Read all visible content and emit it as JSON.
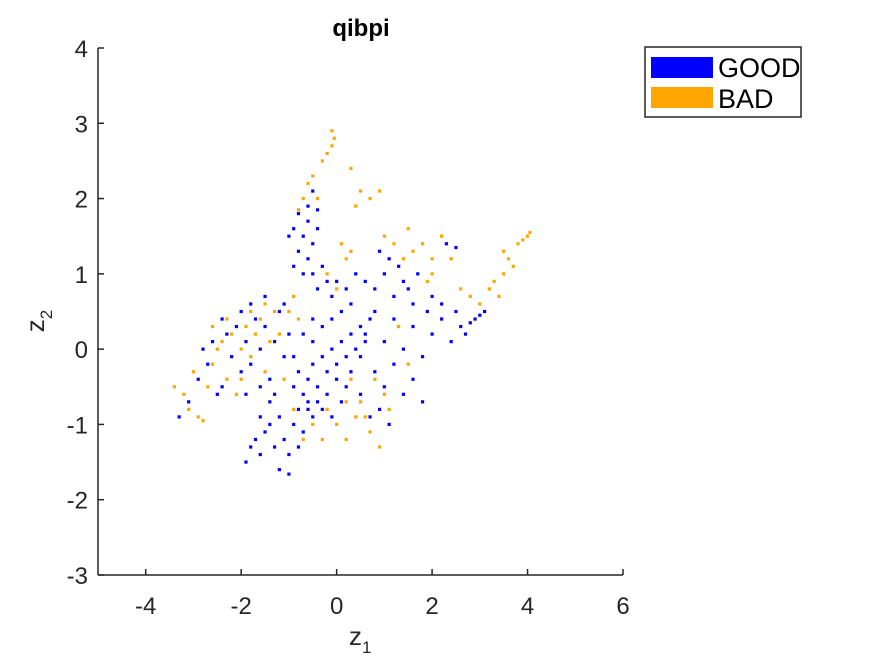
{
  "chart_data": {
    "type": "scatter",
    "title": "qibpi",
    "xlabel": "z",
    "xlabel_subscript": "1",
    "ylabel": "z",
    "ylabel_subscript": "2",
    "xlim": [
      -5,
      6
    ],
    "ylim": [
      -3,
      4
    ],
    "xticks": [
      -4,
      -2,
      0,
      2,
      4,
      6
    ],
    "yticks": [
      -3,
      -2,
      -1,
      0,
      1,
      2,
      3,
      4
    ],
    "grid": false,
    "legend_position": "top-right, outside axes",
    "series": [
      {
        "name": "GOOD",
        "color": "#0000ff",
        "points": [
          [
            -3.3,
            -0.9
          ],
          [
            -3.1,
            -0.7
          ],
          [
            -2.9,
            -0.4
          ],
          [
            -2.7,
            -0.2
          ],
          [
            -2.6,
            0.1
          ],
          [
            -2.4,
            -0.5
          ],
          [
            -2.3,
            0.2
          ],
          [
            -2.2,
            -0.1
          ],
          [
            -2.1,
            0.3
          ],
          [
            -2.0,
            -0.3
          ],
          [
            -1.9,
            0.1
          ],
          [
            -1.8,
            -0.2
          ],
          [
            -1.7,
            0.4
          ],
          [
            -1.6,
            0.0
          ],
          [
            -1.5,
            0.3
          ],
          [
            -1.4,
            -0.4
          ],
          [
            -1.3,
            0.1
          ],
          [
            -1.2,
            0.5
          ],
          [
            -1.1,
            -0.1
          ],
          [
            -1.0,
            0.2
          ],
          [
            -2.5,
            -0.6
          ],
          [
            -2.0,
            0.5
          ],
          [
            -1.8,
            0.6
          ],
          [
            -1.6,
            -0.5
          ],
          [
            -2.8,
            0.0
          ],
          [
            -2.4,
            0.4
          ],
          [
            -1.9,
            -0.6
          ],
          [
            -1.5,
            0.7
          ],
          [
            -1.3,
            -0.6
          ],
          [
            -1.1,
            0.6
          ],
          [
            -1.9,
            -1.5
          ],
          [
            -1.8,
            -1.3
          ],
          [
            -1.7,
            -1.2
          ],
          [
            -1.6,
            -1.4
          ],
          [
            -1.5,
            -1.1
          ],
          [
            -1.4,
            -1.0
          ],
          [
            -1.3,
            -1.3
          ],
          [
            -1.2,
            -0.9
          ],
          [
            -1.1,
            -1.2
          ],
          [
            -1.0,
            -1.4
          ],
          [
            -0.9,
            -1.0
          ],
          [
            -0.8,
            -0.8
          ],
          [
            -0.7,
            -1.1
          ],
          [
            -0.6,
            -0.7
          ],
          [
            -0.5,
            -0.9
          ],
          [
            -1.2,
            -1.6
          ],
          [
            -1.0,
            -1.66
          ],
          [
            -0.8,
            -1.3
          ],
          [
            -1.6,
            -0.9
          ],
          [
            -1.4,
            -0.7
          ],
          [
            -0.9,
            -0.5
          ],
          [
            -0.8,
            -0.3
          ],
          [
            -0.7,
            -0.6
          ],
          [
            -0.6,
            -0.4
          ],
          [
            -0.5,
            -0.2
          ],
          [
            -0.4,
            -0.5
          ],
          [
            -0.3,
            -0.1
          ],
          [
            -0.2,
            -0.3
          ],
          [
            -0.1,
            0.0
          ],
          [
            0.0,
            -0.2
          ],
          [
            0.1,
            0.1
          ],
          [
            0.2,
            -0.1
          ],
          [
            0.3,
            0.2
          ],
          [
            0.4,
            0.0
          ],
          [
            0.5,
            0.3
          ],
          [
            -0.6,
            -0.8
          ],
          [
            -0.4,
            -0.7
          ],
          [
            -0.2,
            -0.6
          ],
          [
            0.0,
            -0.4
          ],
          [
            0.2,
            -0.5
          ],
          [
            -0.5,
            0.1
          ],
          [
            -0.3,
            0.3
          ],
          [
            -0.1,
            0.4
          ],
          [
            0.1,
            0.5
          ],
          [
            0.3,
            0.6
          ],
          [
            -0.9,
            -0.1
          ],
          [
            -0.7,
            0.2
          ],
          [
            -0.5,
            0.4
          ],
          [
            -0.3,
            -0.8
          ],
          [
            -0.1,
            -0.9
          ],
          [
            0.1,
            -0.7
          ],
          [
            0.3,
            -0.3
          ],
          [
            0.5,
            -0.1
          ],
          [
            0.6,
            0.1
          ],
          [
            0.7,
            0.4
          ],
          [
            -0.9,
            1.6
          ],
          [
            -0.8,
            1.8
          ],
          [
            -0.7,
            1.5
          ],
          [
            -0.6,
            1.7
          ],
          [
            -0.5,
            1.4
          ],
          [
            -0.4,
            1.6
          ],
          [
            -0.6,
            1.2
          ],
          [
            -0.5,
            1.0
          ],
          [
            -0.4,
            0.8
          ],
          [
            -0.3,
            1.1
          ],
          [
            -0.2,
            0.9
          ],
          [
            -0.1,
            0.7
          ],
          [
            0.0,
            0.9
          ],
          [
            -0.7,
            1.0
          ],
          [
            -0.8,
            1.3
          ],
          [
            -0.6,
            1.9
          ],
          [
            -0.5,
            2.1
          ],
          [
            -0.4,
            1.85
          ],
          [
            -1.0,
            1.5
          ],
          [
            -0.9,
            1.1
          ],
          [
            0.6,
            0.2
          ],
          [
            0.8,
            0.5
          ],
          [
            1.0,
            0.1
          ],
          [
            1.2,
            0.4
          ],
          [
            1.4,
            0.0
          ],
          [
            1.6,
            0.3
          ],
          [
            1.8,
            -0.1
          ],
          [
            2.0,
            0.2
          ],
          [
            2.2,
            0.4
          ],
          [
            2.4,
            0.1
          ],
          [
            2.6,
            0.3
          ],
          [
            2.8,
            0.35
          ],
          [
            3.0,
            0.45
          ],
          [
            2.5,
            0.5
          ],
          [
            2.7,
            0.2
          ],
          [
            0.8,
            -0.3
          ],
          [
            1.0,
            -0.5
          ],
          [
            1.2,
            -0.2
          ],
          [
            1.4,
            -0.6
          ],
          [
            1.6,
            -0.4
          ],
          [
            1.8,
            -0.7
          ],
          [
            0.9,
            -0.8
          ],
          [
            1.1,
            -1.0
          ],
          [
            0.5,
            -0.6
          ],
          [
            0.7,
            -0.9
          ],
          [
            0.8,
            0.8
          ],
          [
            1.0,
            1.0
          ],
          [
            1.2,
            0.7
          ],
          [
            1.4,
            0.9
          ],
          [
            1.6,
            0.6
          ],
          [
            1.1,
            1.2
          ],
          [
            1.3,
            1.1
          ],
          [
            0.9,
            1.3
          ],
          [
            1.5,
            0.8
          ],
          [
            1.7,
            1.0
          ],
          [
            2.3,
            1.4
          ],
          [
            2.5,
            1.35
          ],
          [
            2.0,
            0.7
          ],
          [
            2.2,
            0.6
          ],
          [
            1.9,
            0.5
          ],
          [
            3.1,
            0.5
          ],
          [
            2.9,
            0.4
          ],
          [
            0.4,
            1.0
          ],
          [
            0.2,
            0.8
          ],
          [
            0.6,
            0.9
          ]
        ]
      },
      {
        "name": "BAD",
        "color": "#ffa500",
        "points": [
          [
            -3.4,
            -0.5
          ],
          [
            -3.2,
            -0.6
          ],
          [
            -3.0,
            -0.3
          ],
          [
            -2.9,
            -0.9
          ],
          [
            -2.8,
            -0.95
          ],
          [
            -2.7,
            -0.5
          ],
          [
            -2.6,
            -0.2
          ],
          [
            -2.5,
            0.0
          ],
          [
            -2.4,
            0.1
          ],
          [
            -2.3,
            -0.4
          ],
          [
            -2.2,
            0.2
          ],
          [
            -2.1,
            -0.6
          ],
          [
            -2.0,
            0.0
          ],
          [
            -1.9,
            0.3
          ],
          [
            -1.8,
            -0.1
          ],
          [
            -1.7,
            0.2
          ],
          [
            -1.6,
            0.4
          ],
          [
            -1.5,
            -0.3
          ],
          [
            -1.4,
            0.1
          ],
          [
            -1.3,
            0.5
          ],
          [
            -2.6,
            0.3
          ],
          [
            -2.3,
            0.4
          ],
          [
            -2.0,
            -0.4
          ],
          [
            -1.8,
            0.5
          ],
          [
            -1.5,
            0.6
          ],
          [
            -1.2,
            0.2
          ],
          [
            -1.0,
            0.5
          ],
          [
            -0.9,
            0.7
          ],
          [
            -0.8,
            0.4
          ],
          [
            -3.1,
            -0.8
          ],
          [
            -0.7,
            2.0
          ],
          [
            -0.6,
            2.2
          ],
          [
            -0.5,
            2.3
          ],
          [
            -0.8,
            1.85
          ],
          [
            -0.4,
            2.0
          ],
          [
            -0.5,
            -1.0
          ],
          [
            -0.7,
            -1.2
          ],
          [
            -0.9,
            -0.8
          ],
          [
            -1.1,
            -0.4
          ],
          [
            -0.3,
            -1.2
          ],
          [
            -0.2,
            1.0
          ],
          [
            0.0,
            0.8
          ],
          [
            0.2,
            1.2
          ],
          [
            0.1,
            1.4
          ],
          [
            0.3,
            1.3
          ],
          [
            -0.3,
            2.5
          ],
          [
            -0.2,
            2.6
          ],
          [
            -0.1,
            2.7
          ],
          [
            -0.05,
            2.8
          ],
          [
            -0.1,
            2.9
          ],
          [
            0.3,
            2.4
          ],
          [
            0.5,
            2.1
          ],
          [
            0.7,
            2.0
          ],
          [
            0.9,
            2.1
          ],
          [
            0.4,
            1.9
          ],
          [
            0.3,
            -0.4
          ],
          [
            0.5,
            -0.7
          ],
          [
            0.7,
            -1.1
          ],
          [
            0.9,
            -1.3
          ],
          [
            0.6,
            -0.9
          ],
          [
            1.0,
            -0.6
          ],
          [
            0.8,
            -0.4
          ],
          [
            0.4,
            -0.9
          ],
          [
            1.1,
            -0.8
          ],
          [
            0.2,
            -0.7
          ],
          [
            1.0,
            1.5
          ],
          [
            1.2,
            1.4
          ],
          [
            1.5,
            1.6
          ],
          [
            1.8,
            1.4
          ],
          [
            1.6,
            1.3
          ],
          [
            2.0,
            1.2
          ],
          [
            2.2,
            1.5
          ],
          [
            2.0,
            1.0
          ],
          [
            1.4,
            1.2
          ],
          [
            1.9,
            0.9
          ],
          [
            2.4,
            1.2
          ],
          [
            2.6,
            0.8
          ],
          [
            2.8,
            0.7
          ],
          [
            3.0,
            0.6
          ],
          [
            3.2,
            0.8
          ],
          [
            3.3,
            0.9
          ],
          [
            3.5,
            1.0
          ],
          [
            3.6,
            1.2
          ],
          [
            3.7,
            1.1
          ],
          [
            3.5,
            1.3
          ],
          [
            3.8,
            1.4
          ],
          [
            3.9,
            1.45
          ],
          [
            4.0,
            1.5
          ],
          [
            4.05,
            1.55
          ],
          [
            3.4,
            0.7
          ],
          [
            0.0,
            -1.0
          ],
          [
            0.2,
            -1.2
          ],
          [
            -0.2,
            -0.8
          ],
          [
            1.5,
            -0.2
          ],
          [
            1.3,
            0.3
          ]
        ]
      }
    ]
  }
}
